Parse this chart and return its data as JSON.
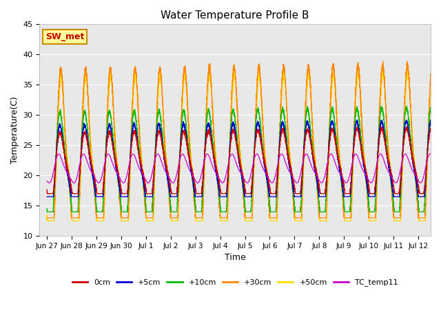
{
  "title": "Water Temperature Profile B",
  "xlabel": "Time",
  "ylabel": "Temperature(C)",
  "ylim": [
    10,
    45
  ],
  "background_color": "#ffffff",
  "plot_bg_color": "#e8e8e8",
  "grid_color": "#ffffff",
  "annotation_text": "SW_met",
  "annotation_bg": "#ffff99",
  "annotation_border": "#cc8800",
  "annotation_text_color": "#cc0000",
  "series_colors": {
    "0cm": "#cc0000",
    "+5cm": "#0000cc",
    "+10cm": "#00bb00",
    "+30cm": "#ff8800",
    "+50cm": "#ffdd00",
    "TC_temp11": "#cc00cc"
  },
  "xtick_labels": [
    "Jun 27",
    "Jun 28",
    "Jun 29",
    "Jun 30",
    "Jul 1",
    "Jul 2",
    "Jul 3",
    "Jul 4",
    "Jul 5",
    "Jul 6",
    "Jul 7",
    "Jul 8",
    "Jul 9",
    "Jul 10",
    "Jul 11",
    "Jul 12"
  ],
  "xtick_positions": [
    0,
    1,
    2,
    3,
    4,
    5,
    6,
    7,
    8,
    9,
    10,
    11,
    12,
    13,
    14,
    15
  ],
  "ytick_positions": [
    10,
    15,
    20,
    25,
    30,
    35,
    40,
    45
  ],
  "figsize": [
    6.4,
    4.8
  ],
  "dpi": 100
}
